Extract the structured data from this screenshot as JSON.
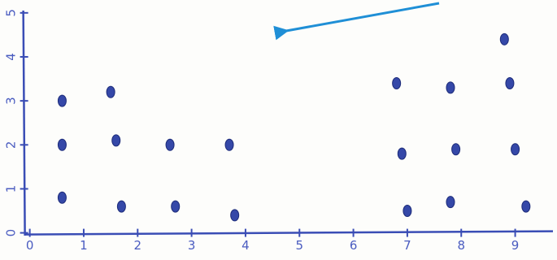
{
  "chart_data": {
    "type": "scatter",
    "color": "#3548a8",
    "x": [
      0.6,
      1.5,
      0.6,
      1.6,
      2.6,
      3.7,
      0.6,
      1.7,
      2.7,
      3.8,
      6.8,
      7.8,
      8.8,
      8.9,
      6.9,
      7.9,
      9.0,
      7.0,
      7.8,
      9.2
    ],
    "values": [
      3.0,
      3.2,
      2.0,
      2.1,
      2.0,
      2.0,
      0.8,
      0.6,
      0.6,
      0.4,
      3.4,
      3.3,
      4.4,
      3.4,
      1.8,
      1.9,
      1.9,
      0.5,
      0.7,
      0.6
    ],
    "xlim": [
      -0.1,
      9.7
    ],
    "xticks": [
      0,
      1,
      2,
      3,
      4,
      5,
      6,
      7,
      8,
      9
    ],
    "ylim": [
      -0.1,
      5.2
    ],
    "yticks": [
      0,
      1,
      2,
      3,
      4,
      5
    ]
  }
}
